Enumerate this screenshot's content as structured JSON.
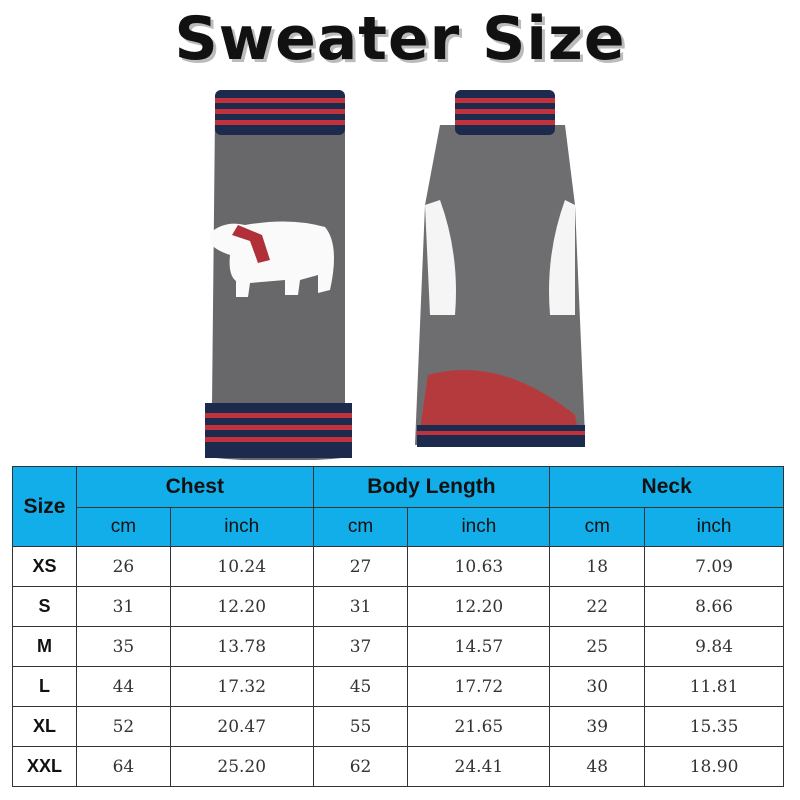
{
  "title": "Sweater Size",
  "table": {
    "size_header": "Size",
    "groups": [
      "Chest",
      "Body Length",
      "Neck"
    ],
    "units": [
      "cm",
      "inch",
      "cm",
      "inch",
      "cm",
      "inch"
    ],
    "rows": [
      {
        "size": "XS",
        "values": [
          "26",
          "10.24",
          "27",
          "10.63",
          "18",
          "7.09"
        ]
      },
      {
        "size": "S",
        "values": [
          "31",
          "12.20",
          "31",
          "12.20",
          "22",
          "8.66"
        ]
      },
      {
        "size": "M",
        "values": [
          "35",
          "13.78",
          "37",
          "14.57",
          "25",
          "9.84"
        ]
      },
      {
        "size": "L",
        "values": [
          "44",
          "17.32",
          "45",
          "17.72",
          "30",
          "11.81"
        ]
      },
      {
        "size": "XL",
        "values": [
          "52",
          "20.47",
          "55",
          "21.65",
          "39",
          "15.35"
        ]
      },
      {
        "size": "XXL",
        "values": [
          "64",
          "25.20",
          "62",
          "24.41",
          "48",
          "18.90"
        ]
      }
    ]
  },
  "colors": {
    "header": "#12aeea",
    "sweater": "#6a6a6c",
    "stripe_red": "#c0323c",
    "stripe_navy": "#1c2a4e"
  }
}
